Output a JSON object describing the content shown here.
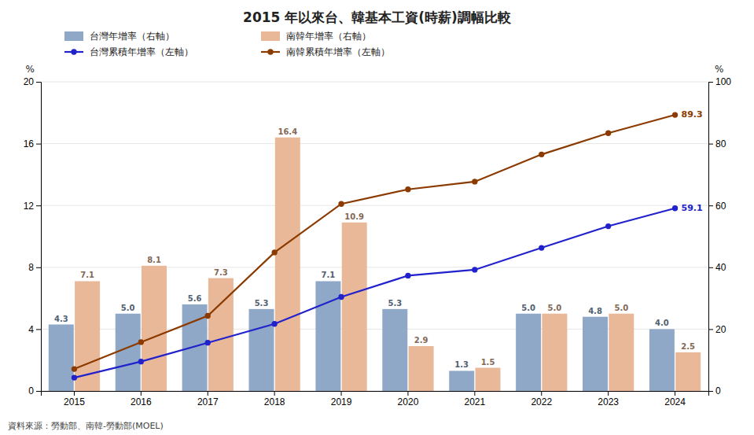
{
  "chart_data": {
    "type": "bar",
    "title": "2015 年以來台、韓基本工資(時薪)調幅比較",
    "source": "資料來源：勞動部、南韓-勞動部(MOEL)",
    "categories": [
      "2015",
      "2016",
      "2017",
      "2018",
      "2019",
      "2020",
      "2021",
      "2022",
      "2023",
      "2024"
    ],
    "y_label": "%",
    "y2_label": "%",
    "ylim": [
      0,
      20
    ],
    "yticks": [
      0,
      4,
      8,
      12,
      16,
      20
    ],
    "y2lim": [
      0,
      100
    ],
    "y2ticks": [
      0,
      20,
      40,
      60,
      80,
      100
    ],
    "grid": true,
    "legend": "upper left",
    "data_labels": true,
    "series": [
      {
        "name": "台灣年增率（右軸）",
        "type": "bar",
        "color": "#8fa8c8",
        "values": [
          4.3,
          5.0,
          5.6,
          5.3,
          7.1,
          5.3,
          1.3,
          5.0,
          4.8,
          4.0
        ],
        "value_labels": [
          "4.3",
          "5.0",
          "5.6",
          "5.3",
          "7.1",
          "5.3",
          "1.3",
          "5.0",
          "4.8",
          "4.0"
        ]
      },
      {
        "name": "南韓年增率（右軸）",
        "type": "bar",
        "color": "#e8b898",
        "values": [
          7.1,
          8.1,
          7.3,
          16.4,
          10.9,
          2.9,
          1.5,
          5.0,
          5.0,
          2.5
        ],
        "value_labels": [
          "7.1",
          "8.1",
          "7.3",
          "16.4",
          "10.9",
          "2.9",
          "1.5",
          "5.0",
          "5.0",
          "2.5"
        ]
      },
      {
        "name": "台灣累積年增率（左軸）",
        "type": "line",
        "axis": "y2",
        "color": "#2222cc",
        "marker": "circle",
        "line_style": "solid",
        "values": [
          4.3,
          9.5,
          15.6,
          21.7,
          30.4,
          37.3,
          39.2,
          46.3,
          53.3,
          59.1
        ],
        "value_labels": [
          null,
          null,
          null,
          null,
          null,
          null,
          null,
          null,
          null,
          "59.1"
        ]
      },
      {
        "name": "南韓累積年增率（左軸）",
        "type": "line",
        "axis": "y2",
        "color": "#8b3a00",
        "marker": "circle",
        "line_style": "solid",
        "values": [
          7.1,
          15.8,
          24.3,
          44.8,
          60.5,
          65.2,
          67.7,
          76.5,
          83.4,
          89.3
        ],
        "value_labels": [
          null,
          null,
          null,
          null,
          null,
          null,
          null,
          null,
          null,
          "89.3"
        ]
      }
    ]
  }
}
